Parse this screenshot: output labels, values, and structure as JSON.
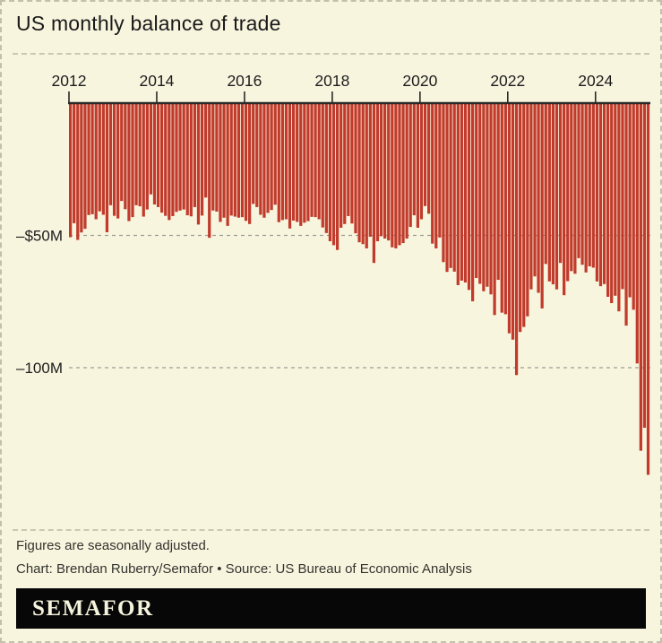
{
  "title": "US monthly balance of trade",
  "note": "Figures are seasonally adjusted.",
  "credit": "Chart: Brendan Ruberry/Semafor • Source: US Bureau of Economic Analysis",
  "logo": "SEMAFOR",
  "colors": {
    "background": "#f8f5df",
    "bar": "#c13a2b",
    "axis": "#2a2a28",
    "gridline": "#9d9c92",
    "tick_text": "#1c1c1c",
    "footnote_text": "#33332e",
    "logo_bg": "#070707",
    "logo_text": "#f6f3dc",
    "divider": "#ccc8af"
  },
  "chart_data": {
    "type": "bar",
    "title": "US monthly balance of trade",
    "unit": "$M",
    "frequency": "monthly",
    "x_start": "2012-01",
    "x_end": "2025-03",
    "start_year": 2012,
    "x_tick_years": [
      2012,
      2014,
      2016,
      2018,
      2020,
      2022,
      2024
    ],
    "x_tick_labels": [
      "2012",
      "2014",
      "2016",
      "2018",
      "2020",
      "2022",
      "2024"
    ],
    "y_ticks": [
      {
        "value": -50,
        "label": "–$50M"
      },
      {
        "value": -100,
        "label": "–100M"
      }
    ],
    "ylim": [
      -160,
      0
    ],
    "baseline": 0,
    "grid": "dashed-horizontal",
    "legend": "none",
    "values": [
      -50.7,
      -45.4,
      -51.7,
      -48.9,
      -47.5,
      -42.3,
      -42.0,
      -43.9,
      -40.9,
      -42.2,
      -48.8,
      -38.6,
      -42.6,
      -43.6,
      -37.0,
      -40.1,
      -44.6,
      -43.1,
      -38.6,
      -39.0,
      -42.9,
      -40.2,
      -34.5,
      -38.3,
      -39.3,
      -41.4,
      -42.6,
      -44.2,
      -42.7,
      -41.1,
      -40.6,
      -40.2,
      -42.4,
      -42.8,
      -39.3,
      -45.9,
      -42.5,
      -35.7,
      -50.9,
      -40.6,
      -41.0,
      -44.9,
      -43.3,
      -46.4,
      -42.5,
      -42.9,
      -43.3,
      -43.1,
      -44.5,
      -45.7,
      -38.1,
      -39.3,
      -42.2,
      -43.3,
      -41.5,
      -40.4,
      -38.4,
      -45.0,
      -44.2,
      -43.9,
      -47.4,
      -44.4,
      -44.9,
      -46.4,
      -45.2,
      -44.6,
      -43.0,
      -43.1,
      -43.9,
      -47.0,
      -49.1,
      -52.2,
      -53.7,
      -55.5,
      -47.1,
      -45.7,
      -42.7,
      -45.5,
      -49.2,
      -52.6,
      -53.3,
      -54.9,
      -50.5,
      -60.4,
      -52.2,
      -50.3,
      -51.2,
      -51.9,
      -54.5,
      -54.9,
      -53.7,
      -52.9,
      -51.2,
      -46.8,
      -42.4,
      -47.1,
      -43.9,
      -38.9,
      -41.8,
      -53.1,
      -54.9,
      -50.8,
      -60.1,
      -63.8,
      -62.3,
      -63.7,
      -68.8,
      -67.1,
      -67.8,
      -70.6,
      -74.9,
      -66.1,
      -68.3,
      -71.1,
      -69.4,
      -72.3,
      -80.1,
      -66.8,
      -79.2,
      -79.8,
      -87.0,
      -89.4,
      -102.8,
      -86.5,
      -84.6,
      -80.6,
      -70.4,
      -65.5,
      -71.7,
      -77.6,
      -60.8,
      -67.4,
      -68.5,
      -70.4,
      -60.4,
      -72.6,
      -67.3,
      -63.5,
      -64.5,
      -58.6,
      -61.1,
      -64.0,
      -61.7,
      -62.2,
      -67.4,
      -69.2,
      -68.4,
      -73.2,
      -75.6,
      -72.8,
      -78.7,
      -70.3,
      -84.1,
      -73.4,
      -78.1,
      -98.4,
      -131.4,
      -122.7,
      -140.5
    ]
  }
}
